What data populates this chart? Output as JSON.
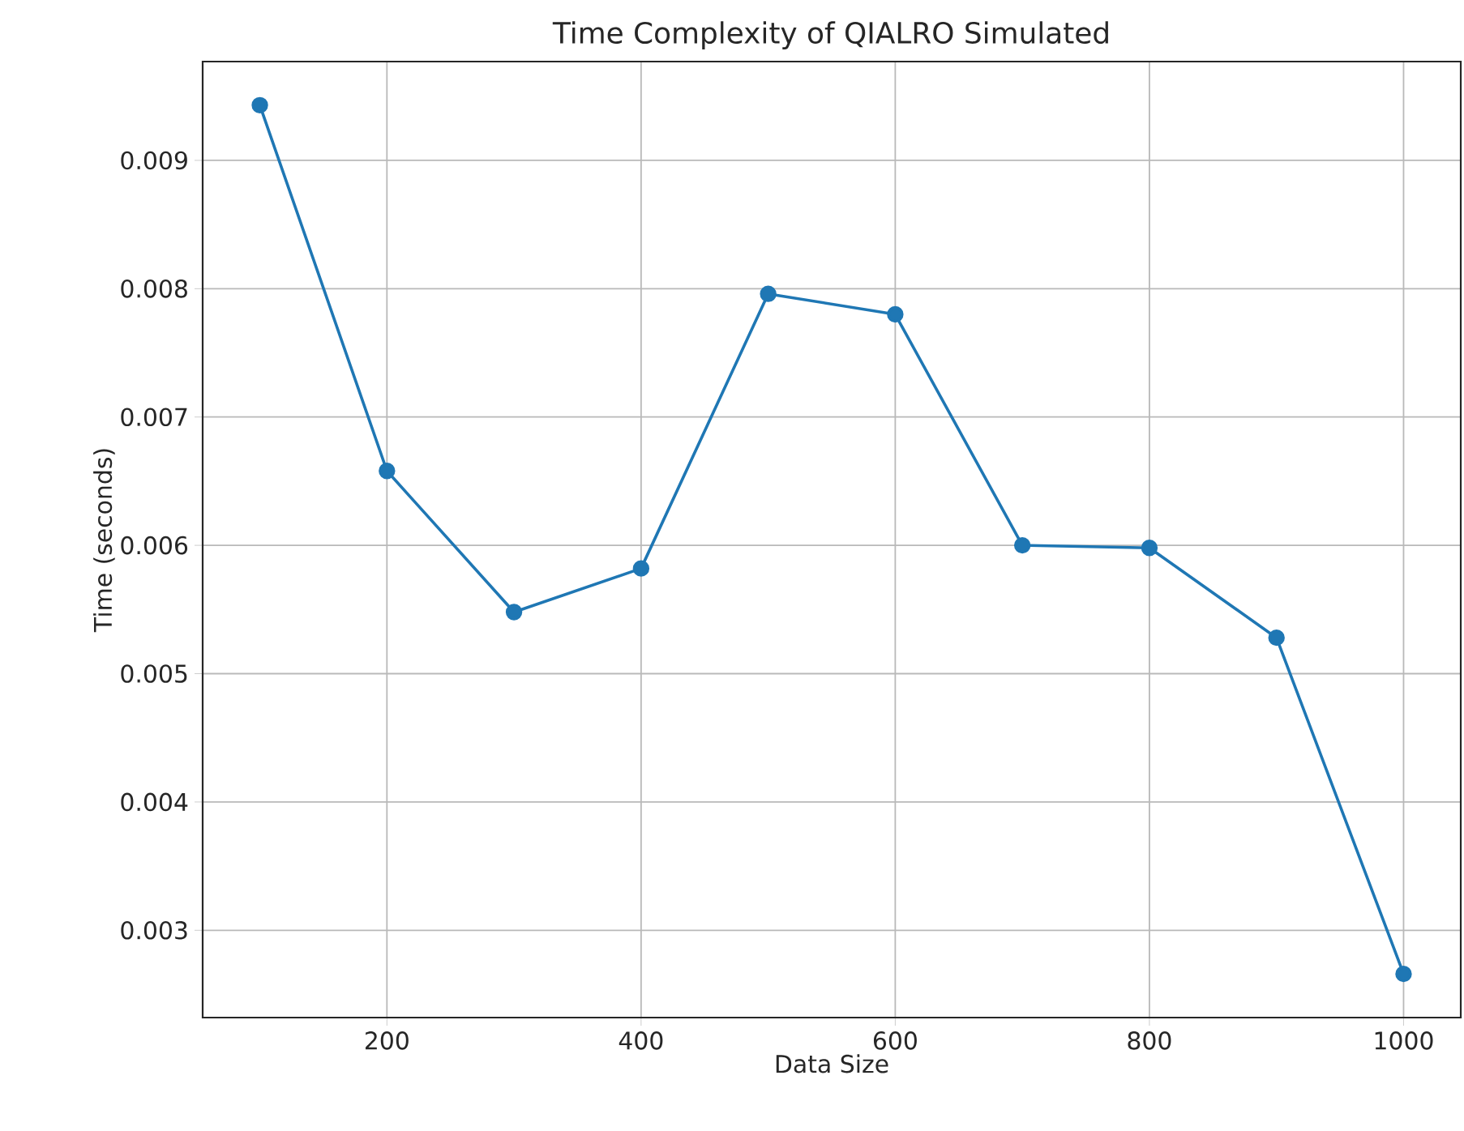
{
  "chart_data": {
    "type": "line",
    "title": "Time Complexity of QIALRO Simulated",
    "xlabel": "Data Size",
    "ylabel": "Time (seconds)",
    "x": [
      100,
      200,
      300,
      400,
      500,
      600,
      700,
      800,
      900,
      1000
    ],
    "series": [
      {
        "color": "#1f77b4",
        "values": [
          0.00943,
          0.00658,
          0.00548,
          0.00582,
          0.00796,
          0.0078,
          0.006,
          0.00598,
          0.00528,
          0.00266
        ]
      }
    ],
    "xlim": [
      55,
      1045
    ],
    "ylim": [
      0.00232,
      0.00977
    ],
    "xticks": [
      200,
      400,
      600,
      800,
      1000
    ],
    "yticks": [
      0.003,
      0.004,
      0.005,
      0.006,
      0.007,
      0.008,
      0.009
    ],
    "grid": true,
    "marker": "circle",
    "line_style": "solid"
  }
}
